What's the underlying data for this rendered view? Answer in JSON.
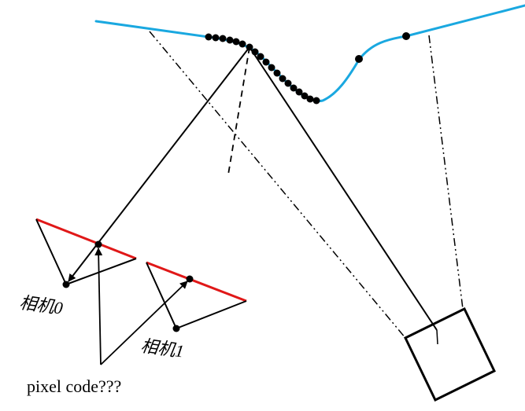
{
  "labels": {
    "camera0": "相机0",
    "camera1": "相机1",
    "pixel_code": "pixel code???"
  },
  "colors": {
    "surface": "#1aa8e0",
    "image_plane": "#e01818",
    "ink": "#000000"
  }
}
